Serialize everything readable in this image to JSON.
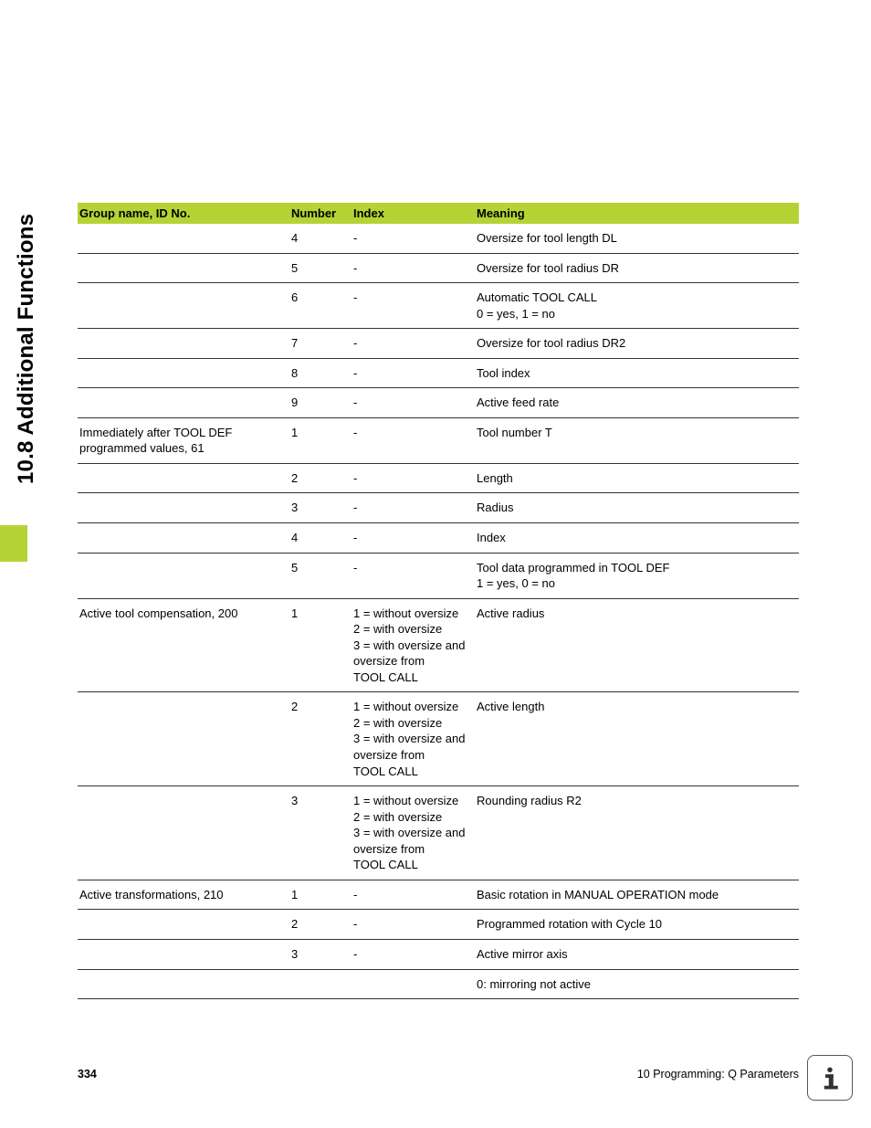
{
  "side": {
    "title": "10.8 Additional Functions",
    "tab_color": "#b5d334"
  },
  "table": {
    "headers": {
      "group": "Group name, ID No.",
      "number": "Number",
      "index": "Index",
      "meaning": "Meaning"
    },
    "rows": [
      {
        "group": "",
        "number": "4",
        "index": "-",
        "meaning": "Oversize for tool length DL"
      },
      {
        "group": "",
        "number": "5",
        "index": "-",
        "meaning": "Oversize for tool radius DR"
      },
      {
        "group": "",
        "number": "6",
        "index": "-",
        "meaning": "Automatic TOOL CALL\n0 = yes, 1 = no"
      },
      {
        "group": "",
        "number": "7",
        "index": "-",
        "meaning": "Oversize for tool radius DR2"
      },
      {
        "group": "",
        "number": "8",
        "index": "-",
        "meaning": "Tool index"
      },
      {
        "group": "",
        "number": "9",
        "index": "-",
        "meaning": "Active feed rate"
      },
      {
        "group": "Immediately after TOOL DEF programmed values, 61",
        "number": "1",
        "index": "-",
        "meaning": "Tool number T"
      },
      {
        "group": "",
        "number": "2",
        "index": "-",
        "meaning": "Length"
      },
      {
        "group": "",
        "number": "3",
        "index": "-",
        "meaning": "Radius"
      },
      {
        "group": "",
        "number": "4",
        "index": "-",
        "meaning": "Index"
      },
      {
        "group": "",
        "number": "5",
        "index": "-",
        "meaning": "Tool data programmed in TOOL DEF\n1 = yes, 0 = no"
      },
      {
        "group": "Active tool compensation, 200",
        "number": "1",
        "index": "1 = without oversize\n2 = with oversize\n3 = with oversize and oversize from\nTOOL CALL",
        "meaning": "Active radius"
      },
      {
        "group": "",
        "number": "2",
        "index": "1 = without oversize\n2 = with oversize\n3 = with oversize and oversize from\nTOOL CALL",
        "meaning": "Active length"
      },
      {
        "group": "",
        "number": "3",
        "index": "1 = without oversize\n2 = with oversize\n3 = with oversize and oversize from\nTOOL CALL",
        "meaning": "Rounding radius R2"
      },
      {
        "group": "Active transformations, 210",
        "number": "1",
        "index": "-",
        "meaning": "Basic rotation in MANUAL OPERATION mode"
      },
      {
        "group": "",
        "number": "2",
        "index": "-",
        "meaning": "Programmed rotation with Cycle 10"
      },
      {
        "group": "",
        "number": "3",
        "index": "-",
        "meaning": "Active mirror axis"
      },
      {
        "group": "",
        "number": "",
        "index": "",
        "meaning": "0: mirroring not active"
      }
    ]
  },
  "footer": {
    "page_number": "334",
    "chapter": "10 Programming: Q Parameters"
  },
  "styling": {
    "header_bg": "#b5d334",
    "row_border": "#333333",
    "body_font_size": 13,
    "header_font_size": 13,
    "side_title_font_size": 24,
    "footer_font_size": 12.5
  }
}
